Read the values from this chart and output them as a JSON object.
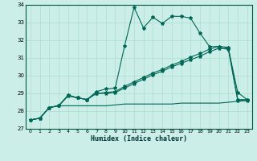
{
  "xlabel": "Humidex (Indice chaleur)",
  "ylabel": "",
  "background_color": "#cceee8",
  "grid_color": "#aaddcc",
  "line_color": "#006655",
  "xlim": [
    -0.5,
    23.5
  ],
  "ylim": [
    27,
    34
  ],
  "xticks": [
    0,
    1,
    2,
    3,
    4,
    5,
    6,
    7,
    8,
    9,
    10,
    11,
    12,
    13,
    14,
    15,
    16,
    17,
    18,
    19,
    20,
    21,
    22,
    23
  ],
  "yticks": [
    27,
    28,
    29,
    30,
    31,
    32,
    33,
    34
  ],
  "series1_x": [
    0,
    1,
    2,
    3,
    4,
    5,
    6,
    7,
    8,
    9,
    10,
    11,
    12,
    13,
    14,
    15,
    16,
    17,
    18,
    19,
    20,
    21,
    22,
    23
  ],
  "series1_y": [
    27.5,
    27.6,
    28.2,
    28.3,
    28.9,
    28.75,
    28.65,
    29.1,
    29.25,
    29.3,
    31.7,
    33.85,
    32.7,
    33.3,
    32.95,
    33.35,
    33.35,
    33.25,
    32.4,
    31.65,
    31.65,
    31.55,
    29.05,
    28.65
  ],
  "series2_x": [
    0,
    1,
    2,
    3,
    4,
    5,
    6,
    7,
    8,
    9,
    10,
    11,
    12,
    13,
    14,
    15,
    16,
    17,
    18,
    19,
    20,
    21,
    22,
    23
  ],
  "series2_y": [
    27.5,
    27.6,
    28.2,
    28.3,
    28.9,
    28.75,
    28.65,
    29.0,
    29.05,
    29.1,
    29.4,
    29.65,
    29.9,
    30.15,
    30.35,
    30.6,
    30.8,
    31.05,
    31.25,
    31.5,
    31.65,
    31.6,
    28.65,
    28.65
  ],
  "series3_x": [
    0,
    1,
    2,
    3,
    4,
    5,
    6,
    7,
    8,
    9,
    10,
    11,
    12,
    13,
    14,
    15,
    16,
    17,
    18,
    19,
    20,
    21,
    22,
    23
  ],
  "series3_y": [
    27.5,
    27.6,
    28.2,
    28.3,
    28.85,
    28.75,
    28.65,
    29.0,
    29.0,
    29.05,
    29.3,
    29.55,
    29.8,
    30.05,
    30.25,
    30.5,
    30.7,
    30.9,
    31.1,
    31.35,
    31.55,
    31.5,
    28.6,
    28.6
  ],
  "series4_x": [
    0,
    1,
    2,
    3,
    4,
    5,
    6,
    7,
    8,
    9,
    10,
    11,
    12,
    13,
    14,
    15,
    16,
    17,
    18,
    19,
    20,
    21,
    22,
    23
  ],
  "series4_y": [
    27.5,
    27.6,
    28.2,
    28.3,
    28.3,
    28.3,
    28.3,
    28.3,
    28.3,
    28.35,
    28.4,
    28.4,
    28.4,
    28.4,
    28.4,
    28.4,
    28.45,
    28.45,
    28.45,
    28.45,
    28.45,
    28.5,
    28.55,
    28.6
  ]
}
